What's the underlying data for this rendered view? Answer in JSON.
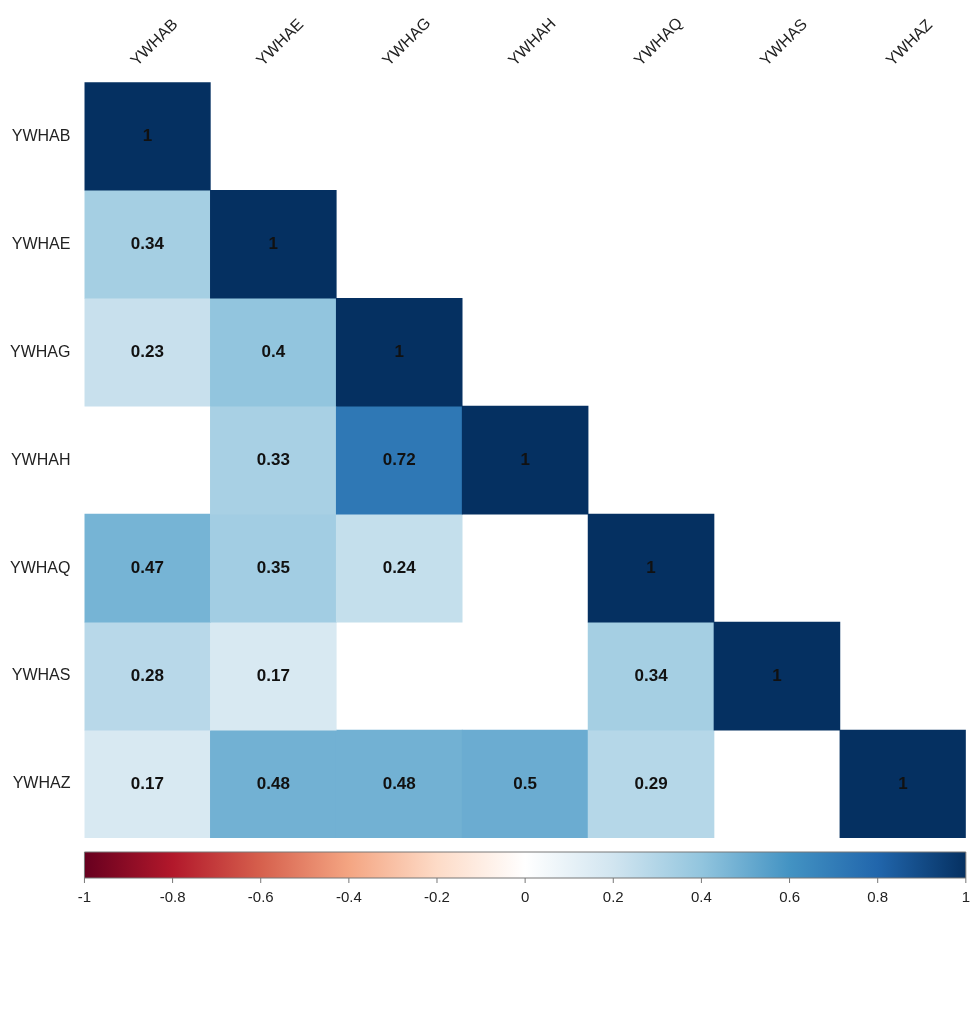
{
  "chart_data": {
    "type": "heatmap",
    "categories": [
      "YWHAB",
      "YWHAE",
      "YWHAG",
      "YWHAH",
      "YWHAQ",
      "YWHAS",
      "YWHAZ"
    ],
    "y_categories": [
      "YWHAB",
      "YWHAE",
      "YWHAG",
      "YWHAH",
      "YWHAQ",
      "YWHAS",
      "YWHAZ"
    ],
    "cells": [
      [
        1,
        null,
        null,
        null,
        null,
        null,
        null
      ],
      [
        0.34,
        1,
        null,
        null,
        null,
        null,
        null
      ],
      [
        0.23,
        0.4,
        1,
        null,
        null,
        null,
        null
      ],
      [
        null,
        0.33,
        0.72,
        1,
        null,
        null,
        null
      ],
      [
        0.47,
        0.35,
        0.24,
        null,
        1,
        null,
        null
      ],
      [
        0.28,
        0.17,
        null,
        null,
        0.34,
        1,
        null
      ],
      [
        0.17,
        0.48,
        0.48,
        0.5,
        0.29,
        null,
        1
      ]
    ],
    "data_labels": true,
    "clim": [
      -1,
      1
    ],
    "cticks": [
      -1,
      -0.8,
      -0.6,
      -0.4,
      -0.2,
      0,
      0.2,
      0.4,
      0.6,
      0.8,
      1
    ]
  }
}
